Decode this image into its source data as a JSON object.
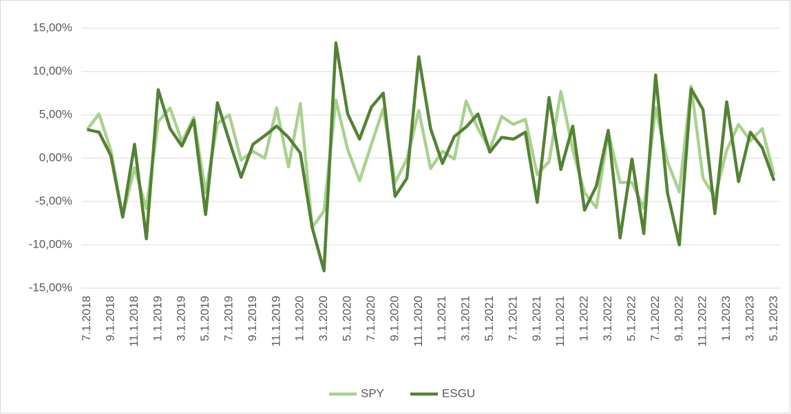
{
  "chart_data": {
    "type": "line",
    "categories": [
      "7.1.2018",
      null,
      "9.1.2018",
      null,
      "11.1.2018",
      null,
      "1.1.2019",
      null,
      "3.1.2019",
      null,
      "5.1.2019",
      null,
      "7.1.2019",
      null,
      "9.1.2019",
      null,
      "11.1.2019",
      null,
      "1.1.2020",
      null,
      "3.1.2020",
      null,
      "5.1.2020",
      null,
      "7.1.2020",
      null,
      "9.1.2020",
      null,
      "11.1.2020",
      null,
      "1.1.2021",
      null,
      "3.1.2021",
      null,
      "5.1.2021",
      null,
      "7.1.2021",
      null,
      "9.1.2021",
      null,
      "11.1.2021",
      null,
      "1.1.2022",
      null,
      "3.1.2022",
      null,
      "5.1.2022",
      null,
      "7.1.2022",
      null,
      "9.1.2022",
      null,
      "11.1.2022",
      null,
      "1.1.2023",
      null,
      "3.1.2023",
      null,
      "5.1.2023"
    ],
    "series": [
      {
        "name": "SPY",
        "color": "#a9d18e",
        "values": [
          3.3,
          5.1,
          0.9,
          -6.7,
          -1.1,
          -5.8,
          4.2,
          5.8,
          1.9,
          4.7,
          -4.0,
          4.0,
          5.0,
          -0.2,
          0.8,
          0.0,
          5.8,
          -1.0,
          6.3,
          -8.0,
          -6.1,
          6.7,
          1.0,
          -2.6,
          1.6,
          5.7,
          -2.8,
          -0.1,
          5.5,
          -1.2,
          0.8,
          -0.1,
          6.6,
          3.4,
          1.0,
          4.8,
          3.9,
          4.5,
          -1.9,
          -0.4,
          7.7,
          1.0,
          -4.0,
          -5.7,
          3.0,
          -2.8,
          -2.8,
          -5.8,
          5.8,
          -0.4,
          -3.9,
          8.3,
          -2.3,
          -4.5,
          0.9,
          3.9,
          2.0,
          3.4,
          -2.0
        ]
      },
      {
        "name": "ESGU",
        "color": "#548235",
        "values": [
          3.3,
          3.0,
          0.3,
          -6.8,
          1.6,
          -9.3,
          7.9,
          3.4,
          1.4,
          4.4,
          -6.5,
          6.4,
          2.0,
          -2.2,
          1.6,
          2.6,
          3.7,
          2.4,
          0.6,
          -8.0,
          -13.0,
          13.3,
          5.1,
          2.2,
          5.9,
          7.5,
          -4.4,
          -2.3,
          11.7,
          3.4,
          -0.6,
          2.5,
          3.6,
          5.1,
          0.7,
          2.4,
          2.2,
          3.0,
          -5.1,
          7.0,
          -1.3,
          3.7,
          -6.0,
          -3.2,
          3.2,
          -9.2,
          -0.1,
          -8.7,
          9.6,
          -4.0,
          -10.0,
          8.0,
          5.6,
          -6.4,
          6.5,
          -2.7,
          3.0,
          1.2,
          -2.6
        ]
      }
    ],
    "ylim": [
      -15,
      15
    ],
    "yticks": [
      {
        "value": -15,
        "label": "-15,00%"
      },
      {
        "value": -10,
        "label": "-10,00%"
      },
      {
        "value": -5,
        "label": "-5,00%"
      },
      {
        "value": 0,
        "label": "0,00%"
      },
      {
        "value": 5,
        "label": "5,00%"
      },
      {
        "value": 10,
        "label": "10,00%"
      },
      {
        "value": 15,
        "label": "15,00%"
      }
    ],
    "grid": true,
    "legend": "bottom"
  }
}
